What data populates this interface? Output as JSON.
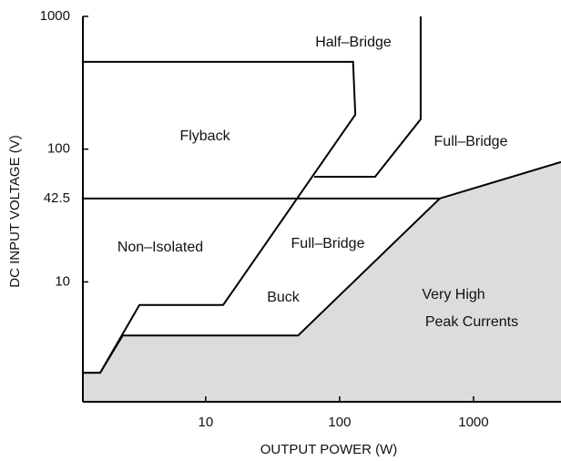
{
  "chart_data": {
    "type": "line",
    "xlabel": "OUTPUT POWER (W)",
    "ylabel": "DC INPUT VOLTAGE (V)",
    "xscale": "log",
    "yscale": "log",
    "xlim": [
      1.21,
      4500
    ],
    "ylim": [
      1.25,
      1000
    ],
    "xticks": [
      10,
      100,
      1000
    ],
    "yticks": [
      10,
      42.5,
      100,
      1000
    ],
    "series": [
      {
        "color": "#000000",
        "fill": "#dcdcdc",
        "x": [
          1.21,
          1.63,
          2.4,
          49,
          560,
          4500
        ],
        "values": [
          2.07,
          2.07,
          3.95,
          3.95,
          42.5,
          80
        ]
      },
      {
        "color": "#000000",
        "x": [
          1.21,
          1.63,
          3.2,
          13.5,
          131,
          126,
          1.21
        ],
        "values": [
          2.07,
          2.07,
          6.7,
          6.7,
          182,
          455,
          455
        ]
      },
      {
        "color": "#000000",
        "x": [
          403,
          403,
          184,
          64.5
        ],
        "values": [
          1000,
          168,
          62,
          62
        ]
      },
      {
        "color": "#000000",
        "x": [
          1.21,
          560
        ],
        "values": [
          42.5,
          42.5
        ]
      }
    ],
    "annotations": [
      "Half–Bridge",
      "Flyback",
      "Full–Bridge",
      "Non–Isolated",
      "Full–Bridge",
      "Buck",
      "Very High",
      "Peak Currents"
    ]
  }
}
